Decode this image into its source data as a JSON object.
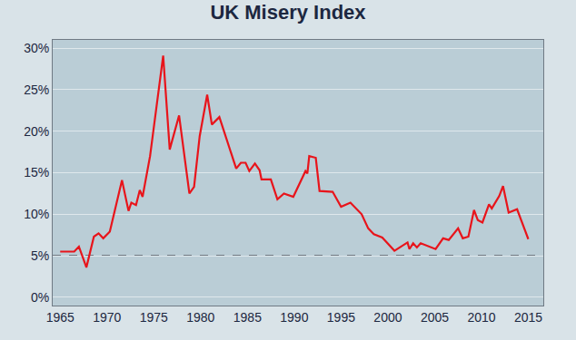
{
  "chart_data": {
    "type": "line",
    "title": "UK Misery Index",
    "color": "#e8141b",
    "grid": true,
    "reference_line": 5,
    "x": [
      1965.0,
      1966.5,
      1967.0,
      1967.8,
      1968.6,
      1969.1,
      1969.6,
      1970.3,
      1971.6,
      1972.3,
      1972.6,
      1973.1,
      1973.5,
      1973.8,
      1974.6,
      1976.0,
      1976.7,
      1977.7,
      1978.8,
      1979.3,
      1979.9,
      1980.7,
      1981.2,
      1982.0,
      1983.8,
      1984.3,
      1984.8,
      1985.2,
      1985.8,
      1986.3,
      1986.5,
      1987.5,
      1988.2,
      1988.9,
      1989.9,
      1991.2,
      1991.4,
      1991.6,
      1992.3,
      1992.7,
      1994.1,
      1995.0,
      1996.0,
      1997.2,
      1997.9,
      1998.5,
      1999.4,
      2000.7,
      2002.1,
      2002.3,
      2002.7,
      2003.1,
      2003.5,
      2005.1,
      2005.9,
      2006.5,
      2007.5,
      2008.0,
      2008.6,
      2009.2,
      2009.6,
      2010.1,
      2010.8,
      2011.1,
      2011.9,
      2012.3,
      2012.9,
      2013.8,
      2015.0
    ],
    "values": [
      5.5,
      5.5,
      6.1,
      3.6,
      7.3,
      7.7,
      7.1,
      7.9,
      14.1,
      10.4,
      11.4,
      11.1,
      12.9,
      12.1,
      17.0,
      29.1,
      17.8,
      21.9,
      12.5,
      13.3,
      19.4,
      24.4,
      20.8,
      21.7,
      15.5,
      16.2,
      16.2,
      15.2,
      16.1,
      15.3,
      14.2,
      14.2,
      11.8,
      12.5,
      12.1,
      15.2,
      14.9,
      17.0,
      16.8,
      12.8,
      12.7,
      10.9,
      11.4,
      10.0,
      8.3,
      7.6,
      7.2,
      5.6,
      6.6,
      5.8,
      6.5,
      6.0,
      6.5,
      5.8,
      7.1,
      6.9,
      8.3,
      7.1,
      7.3,
      10.5,
      9.3,
      9.0,
      11.2,
      10.7,
      12.2,
      13.4,
      10.2,
      10.6,
      7.0
    ],
    "xlim": [
      1964.2,
      2016.6
    ],
    "xticks": [
      1965,
      1970,
      1975,
      1980,
      1985,
      1990,
      1995,
      2000,
      2005,
      2010,
      2015
    ],
    "ylim": [
      -1,
      31
    ],
    "yticks": [
      {
        "value": 0,
        "label": "0%"
      },
      {
        "value": 5,
        "label": "5%"
      },
      {
        "value": 10,
        "label": "10%"
      },
      {
        "value": 15,
        "label": "15%"
      },
      {
        "value": 20,
        "label": "20%"
      },
      {
        "value": 25,
        "label": "25%"
      },
      {
        "value": 30,
        "label": "30%"
      }
    ]
  }
}
